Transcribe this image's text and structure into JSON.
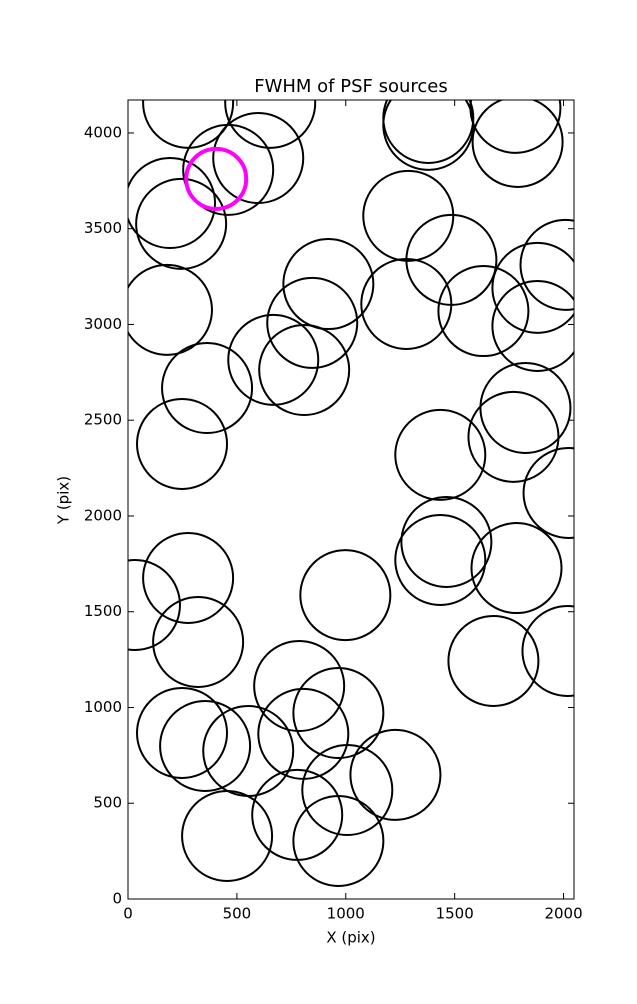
{
  "chart_data": {
    "type": "scatter",
    "title": "FWHM of PSF sources",
    "x_label": "X (pix)",
    "y_label": "Y (pix)",
    "xlim": [
      0,
      2048
    ],
    "ylim": [
      0,
      4172
    ],
    "xticks": [
      0,
      500,
      1000,
      1500,
      2000
    ],
    "yticks": [
      0,
      500,
      1000,
      1500,
      2000,
      2500,
      3000,
      3500,
      4000
    ],
    "grid": false,
    "series": [
      {
        "color": "#000000",
        "x": [
          276,
          653,
          1379,
          1379,
          1779,
          1789,
          598,
          460,
          193,
          244,
          1287,
          1485,
          179,
          920,
          1278,
          1632,
          2009,
          1880,
          1880,
          846,
          667,
          809,
          363,
          248,
          1825,
          1770,
          1434,
          2023,
          1462,
          1434,
          1784,
          32,
          276,
          998,
          322,
          1678,
          2018,
          786,
          966,
          248,
          354,
          552,
          805,
          1228,
          1007,
          777,
          455,
          966
        ],
        "values": [
          4157,
          4157,
          4078,
          4042,
          4131,
          3953,
          3869,
          3807,
          3634,
          3525,
          3567,
          3337,
          3076,
          3211,
          3107,
          3070,
          3311,
          3191,
          2992,
          3008,
          2815,
          2762,
          2668,
          2376,
          2564,
          2413,
          2319,
          2120,
          1864,
          1770,
          1728,
          1535,
          1676,
          1587,
          1342,
          1243,
          1295,
          1112,
          971,
          867,
          799,
          773,
          862,
          648,
          569,
          439,
          329,
          303
        ]
      },
      {
        "color": "#ff00ff",
        "x": [
          405
        ],
        "values": [
          3760
        ]
      }
    ]
  }
}
